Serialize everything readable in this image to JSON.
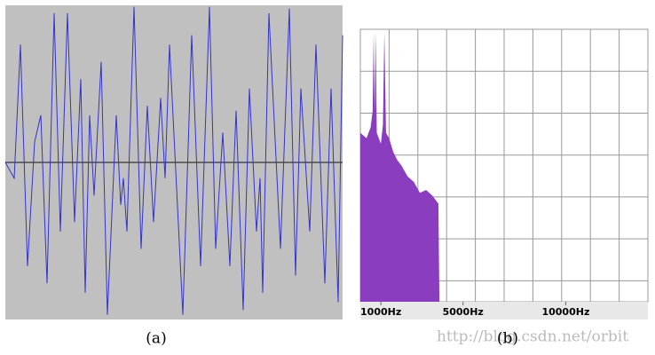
{
  "chart_data": [
    {
      "type": "line",
      "caption": "(a)",
      "color": "#3333cc",
      "xlim": [
        0,
        380
      ],
      "ylim": [
        -1,
        1
      ],
      "x": [
        0,
        10,
        17,
        25,
        33,
        40,
        47,
        55,
        62,
        70,
        78,
        85,
        90,
        95,
        100,
        108,
        115,
        125,
        130,
        133,
        137,
        145,
        153,
        160,
        167,
        175,
        180,
        185,
        200,
        210,
        220,
        230,
        237,
        245,
        253,
        260,
        268,
        275,
        283,
        287,
        290,
        297,
        310,
        320,
        327,
        333,
        343,
        350,
        360,
        367,
        375,
        380
      ],
      "values": [
        0,
        -0.1,
        0.75,
        -0.66,
        0.13,
        0.3,
        -0.77,
        0.95,
        -0.44,
        0.95,
        -0.38,
        0.53,
        -0.83,
        0.3,
        -0.21,
        0.64,
        -0.97,
        0.3,
        -0.27,
        -0.1,
        -0.44,
        0.99,
        -0.55,
        0.36,
        -0.38,
        0.41,
        -0.1,
        0.75,
        -0.97,
        0.81,
        -0.66,
        0.99,
        -0.55,
        0.19,
        -0.66,
        0.33,
        -0.94,
        0.47,
        -0.44,
        -0.1,
        -0.83,
        0.95,
        -0.55,
        0.98,
        -0.72,
        0.47,
        -0.44,
        0.75,
        -0.77,
        0.47,
        -0.89,
        0.81
      ]
    },
    {
      "type": "area",
      "caption": "(b)",
      "color": "#8b3dbf",
      "xlim": [
        0,
        14000
      ],
      "ylim": [
        0,
        1
      ],
      "xticks": [
        {
          "value": 1000,
          "label": "1000Hz"
        },
        {
          "value": 5000,
          "label": "5000Hz"
        },
        {
          "value": 10000,
          "label": "10000Hz"
        }
      ],
      "x": [
        0,
        300,
        500,
        600,
        650,
        700,
        750,
        800,
        900,
        1000,
        1100,
        1170,
        1250,
        1400,
        1600,
        1800,
        2000,
        2300,
        2600,
        2900,
        3200,
        3500,
        3800,
        3850
      ],
      "values": [
        0.62,
        0.6,
        0.64,
        0.7,
        0.99,
        0.7,
        0.99,
        0.62,
        0.6,
        0.58,
        0.65,
        0.99,
        0.62,
        0.6,
        0.55,
        0.52,
        0.5,
        0.46,
        0.44,
        0.4,
        0.41,
        0.39,
        0.36,
        0
      ]
    }
  ],
  "watermark": "http://blog.csdn.net/orbit"
}
